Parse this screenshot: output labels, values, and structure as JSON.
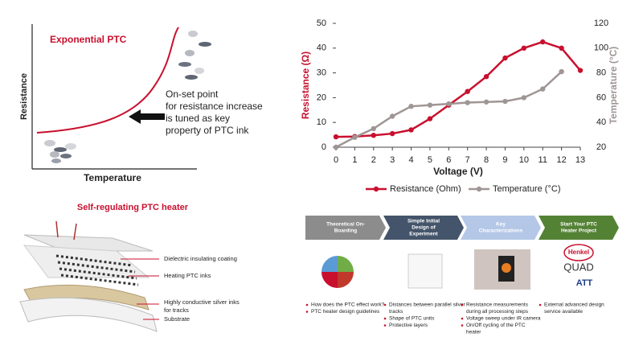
{
  "chart_data": {
    "type": "line",
    "x": [
      0,
      1,
      2,
      3,
      4,
      5,
      6,
      7,
      8,
      9,
      10,
      11,
      12,
      13
    ],
    "xlabel": "Voltage (V)",
    "ylabel": "Resistance (Ω)",
    "y2label": "Temperature (°C)",
    "xlim": [
      0,
      13
    ],
    "xticks": [
      0,
      1,
      2,
      3,
      4,
      5,
      6,
      7,
      8,
      9,
      10,
      11,
      12,
      13
    ],
    "ylim": [
      0,
      50
    ],
    "yticks": [
      0,
      10,
      20,
      30,
      40,
      50
    ],
    "y2lim": [
      20,
      120
    ],
    "y2ticks": [
      20,
      40,
      60,
      80,
      100,
      120
    ],
    "legend": "bottom",
    "series": [
      {
        "name": "Resistance (Ohm)",
        "color": "#c8102e",
        "axis": "y",
        "values": [
          4.2,
          4.3,
          4.8,
          5.5,
          7,
          11.5,
          17,
          22.5,
          28.5,
          36,
          40,
          42.5,
          40,
          31
        ]
      },
      {
        "name": "Temperature (°C)",
        "color": "#a09595",
        "axis": "y2",
        "values": [
          20,
          28,
          35,
          45,
          53,
          54,
          55,
          56,
          56.5,
          57,
          60,
          67,
          81,
          null
        ]
      }
    ]
  },
  "ptc_diagram": {
    "title": "Exponential PTC",
    "ylabel": "Resistance",
    "xlabel": "Temperature",
    "note": [
      "On-set point",
      "for resistance increase",
      "is tuned as key",
      "property of PTC ink"
    ]
  },
  "heater": {
    "title": "Self-regulating PTC heater",
    "layers": [
      [
        "Dielectric insulating coating"
      ],
      [
        "Heating PTC inks"
      ],
      [
        "Highly conductive silver inks",
        "for tracks"
      ],
      [
        "Substrate"
      ]
    ]
  },
  "process": {
    "steps": [
      {
        "title": [
          "Theoretical On-",
          "Boarding"
        ],
        "bullets": [
          [
            "How does the PTC effect work?"
          ],
          [
            "PTC heater design guidelines"
          ]
        ]
      },
      {
        "title": [
          "Simple Initial",
          "Design of",
          "Experiment"
        ],
        "bullets": [
          [
            "Distances between parallel silver",
            "tracks"
          ],
          [
            "Shape of PTC units"
          ],
          [
            "Protective layers"
          ]
        ]
      },
      {
        "title": [
          "Key",
          "Characterizations"
        ],
        "bullets": [
          [
            "Resistance measurements",
            "during all processing steps"
          ],
          [
            "Voltage sweep under IR camera"
          ],
          [
            "On/Off cycling of the PTC",
            "heater"
          ]
        ]
      },
      {
        "title": [
          "Start Your PTC",
          "Heater Project"
        ],
        "bullets": [
          [
            "External advanced design",
            "service available"
          ]
        ]
      }
    ],
    "logos": [
      "Henkel",
      "QUAD",
      "ATT"
    ]
  }
}
